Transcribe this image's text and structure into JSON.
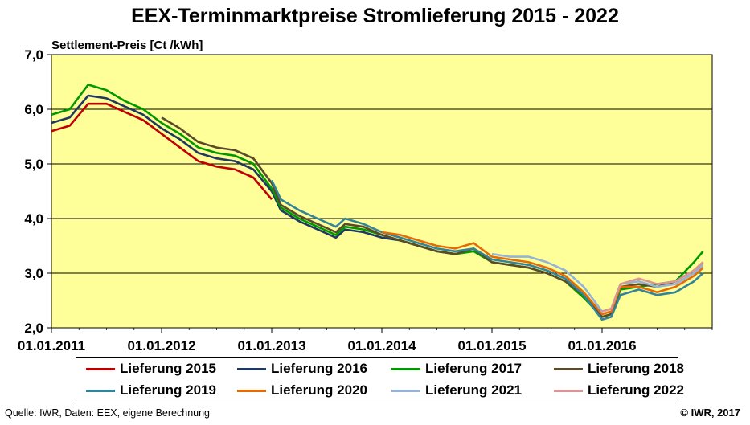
{
  "title": "EEX-Terminmarktpreise Stromlieferung 2015 - 2022",
  "source": "Quelle:  IWR, Daten: EEX, eigene Berechnung",
  "copyright": "© IWR, 2017",
  "chart_data": {
    "type": "line",
    "title": "EEX-Terminmarktpreise Stromlieferung 2015 - 2022",
    "ylabel": "Settlement-Preis [Ct /kWh]",
    "xlabel": "",
    "ylim": [
      2.0,
      7.0
    ],
    "yticks": [
      "2,0",
      "3,0",
      "4,0",
      "5,0",
      "6,0",
      "7,0"
    ],
    "xticks": [
      "01.01.2011",
      "01.01.2012",
      "01.01.2013",
      "01.01.2014",
      "01.01.2015",
      "01.01.2016"
    ],
    "plot_background": "#ffff99",
    "grid": "horizontal",
    "legend_position": "bottom",
    "x_dates": [
      "2011-01",
      "2011-03",
      "2011-05",
      "2011-07",
      "2011-09",
      "2011-11",
      "2012-01",
      "2012-03",
      "2012-05",
      "2012-07",
      "2012-09",
      "2012-11",
      "2013-01",
      "2013-02",
      "2013-04",
      "2013-06",
      "2013-08",
      "2013-09",
      "2013-11",
      "2014-01",
      "2014-03",
      "2014-05",
      "2014-07",
      "2014-09",
      "2014-11",
      "2015-01",
      "2015-03",
      "2015-05",
      "2015-07",
      "2015-09",
      "2015-11",
      "2016-01",
      "2016-02",
      "2016-03",
      "2016-05",
      "2016-07",
      "2016-09",
      "2016-11",
      "2016-12"
    ],
    "series": [
      {
        "name": "Lieferung 2015",
        "color": "#c00000",
        "values": [
          5.6,
          5.7,
          6.1,
          6.1,
          5.95,
          5.8,
          5.55,
          5.3,
          5.05,
          4.95,
          4.9,
          4.75,
          4.35,
          null,
          null,
          null,
          null,
          null,
          null,
          null,
          null,
          null,
          null,
          null,
          null,
          null,
          null,
          null,
          null,
          null,
          null,
          null,
          null,
          null,
          null,
          null,
          null,
          null,
          null
        ]
      },
      {
        "name": "Lieferung 2016",
        "color": "#1f3864",
        "values": [
          5.75,
          5.85,
          6.25,
          6.2,
          6.05,
          5.9,
          5.65,
          5.45,
          5.2,
          5.1,
          5.05,
          4.9,
          4.5,
          4.15,
          3.95,
          3.8,
          3.65,
          3.8,
          3.75,
          3.65,
          3.6,
          3.5,
          3.4,
          3.35,
          null,
          null,
          null,
          null,
          null,
          null,
          null,
          null,
          null,
          null,
          null,
          null,
          null,
          null,
          null
        ]
      },
      {
        "name": "Lieferung 2017",
        "color": "#009900",
        "values": [
          5.9,
          6.0,
          6.45,
          6.35,
          6.15,
          6.0,
          5.75,
          5.55,
          5.3,
          5.2,
          5.15,
          5.0,
          4.55,
          4.2,
          4.0,
          3.85,
          3.7,
          3.85,
          3.8,
          3.7,
          3.6,
          3.5,
          3.4,
          3.35,
          3.4,
          3.2,
          3.15,
          3.1,
          3.0,
          2.85,
          2.55,
          2.2,
          2.25,
          2.7,
          2.75,
          2.8,
          2.85,
          3.2,
          3.4
        ]
      },
      {
        "name": "Lieferung 2018",
        "color": "#5b4a2b",
        "values": [
          null,
          null,
          null,
          null,
          null,
          null,
          5.85,
          5.65,
          5.4,
          5.3,
          5.25,
          5.1,
          4.65,
          4.25,
          4.05,
          3.9,
          3.75,
          3.9,
          3.85,
          3.7,
          3.6,
          3.5,
          3.4,
          3.35,
          3.45,
          3.2,
          3.15,
          3.1,
          3.0,
          2.85,
          2.6,
          2.2,
          2.25,
          2.75,
          2.8,
          2.75,
          2.85,
          3.05,
          3.2
        ]
      },
      {
        "name": "Lieferung 2019",
        "color": "#31849b",
        "values": [
          null,
          null,
          null,
          null,
          null,
          null,
          null,
          null,
          null,
          null,
          null,
          null,
          4.7,
          4.35,
          4.15,
          4.0,
          3.85,
          4.0,
          3.9,
          3.75,
          3.65,
          3.55,
          3.45,
          3.4,
          3.45,
          3.25,
          3.2,
          3.15,
          3.05,
          2.9,
          2.6,
          2.15,
          2.2,
          2.6,
          2.7,
          2.6,
          2.65,
          2.85,
          3.0
        ]
      },
      {
        "name": "Lieferung 2020",
        "color": "#e36c09",
        "values": [
          null,
          null,
          null,
          null,
          null,
          null,
          null,
          null,
          null,
          null,
          null,
          null,
          null,
          null,
          null,
          null,
          null,
          null,
          null,
          3.75,
          3.7,
          3.6,
          3.5,
          3.45,
          3.55,
          3.3,
          3.25,
          3.2,
          3.1,
          2.95,
          2.65,
          2.25,
          2.3,
          2.75,
          2.75,
          2.65,
          2.75,
          2.95,
          3.1
        ]
      },
      {
        "name": "Lieferung 2021",
        "color": "#95b3d7",
        "values": [
          null,
          null,
          null,
          null,
          null,
          null,
          null,
          null,
          null,
          null,
          null,
          null,
          null,
          null,
          null,
          null,
          null,
          null,
          null,
          null,
          null,
          null,
          null,
          null,
          null,
          3.35,
          3.3,
          3.3,
          3.2,
          3.05,
          2.75,
          2.3,
          2.35,
          2.8,
          2.85,
          2.75,
          2.8,
          3.0,
          3.15
        ]
      },
      {
        "name": "Lieferung 2022",
        "color": "#d99694",
        "values": [
          null,
          null,
          null,
          null,
          null,
          null,
          null,
          null,
          null,
          null,
          null,
          null,
          null,
          null,
          null,
          null,
          null,
          null,
          null,
          null,
          null,
          null,
          null,
          null,
          null,
          null,
          null,
          null,
          null,
          null,
          null,
          2.3,
          2.35,
          2.8,
          2.9,
          2.8,
          2.85,
          3.05,
          3.2
        ]
      }
    ]
  }
}
